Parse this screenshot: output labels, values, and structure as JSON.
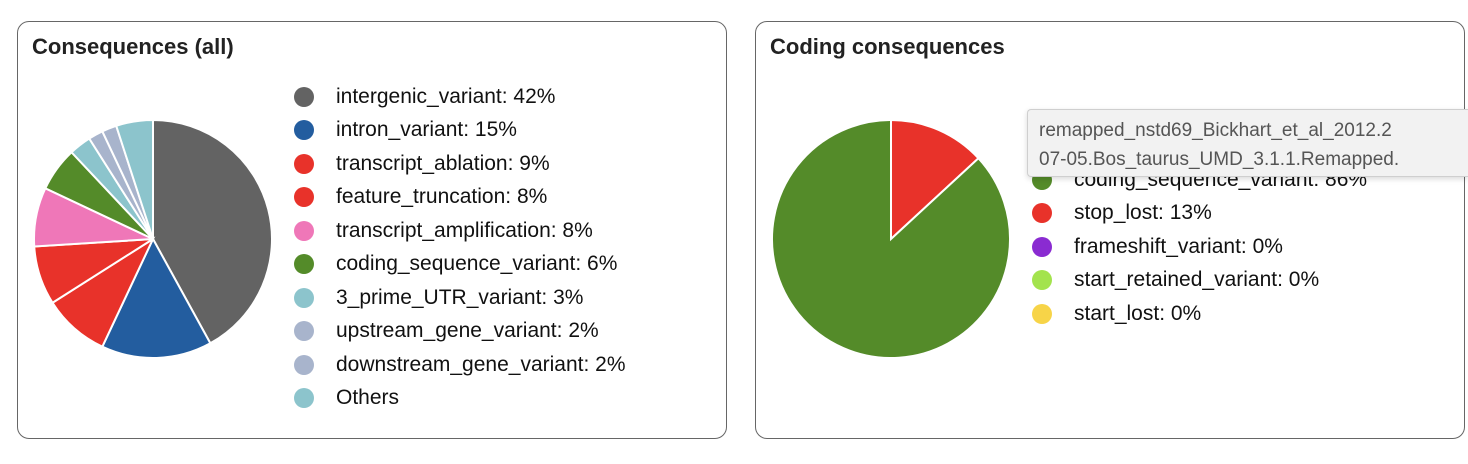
{
  "chart_data": [
    {
      "type": "pie",
      "title": "Consequences (all)",
      "slices": [
        {
          "label": "intergenic_variant: 42%",
          "value": 42,
          "color": "#636363"
        },
        {
          "label": "intron_variant: 15%",
          "value": 15,
          "color": "#235d9f"
        },
        {
          "label": "transcript_ablation: 9%",
          "value": 9,
          "color": "#e8322a"
        },
        {
          "label": "feature_truncation: 8%",
          "value": 8,
          "color": "#e8322a"
        },
        {
          "label": "transcript_amplification: 8%",
          "value": 8,
          "color": "#ef77b8"
        },
        {
          "label": "coding_sequence_variant: 6%",
          "value": 6,
          "color": "#548b29"
        },
        {
          "label": "3_prime_UTR_variant: 3%",
          "value": 3,
          "color": "#8cc4cc"
        },
        {
          "label": "upstream_gene_variant: 2%",
          "value": 2,
          "color": "#a8b4cc"
        },
        {
          "label": "downstream_gene_variant: 2%",
          "value": 2,
          "color": "#a8b4cc"
        },
        {
          "label": "Others",
          "value": 5,
          "color": "#8cc4cc"
        }
      ],
      "pie_slices": [
        {
          "value": 42,
          "color": "#636363"
        },
        {
          "value": 15,
          "color": "#235d9f"
        },
        {
          "value": 9,
          "color": "#e8322a"
        },
        {
          "value": 8,
          "color": "#e8322a"
        },
        {
          "value": 8,
          "color": "#ef77b8"
        },
        {
          "value": 6,
          "color": "#548b29"
        },
        {
          "value": 3,
          "color": "#8cc4cc"
        },
        {
          "value": 2,
          "color": "#a8b4cc"
        },
        {
          "value": 2,
          "color": "#a8b4cc"
        },
        {
          "value": 5,
          "color": "#8cc4cc"
        }
      ]
    },
    {
      "type": "pie",
      "title": "Coding consequences",
      "slices": [
        {
          "label": "coding_sequence_variant: 86%",
          "value": 86,
          "color": "#548b29"
        },
        {
          "label": "stop_lost: 13%",
          "value": 13,
          "color": "#e8322a"
        },
        {
          "label": "frameshift_variant: 0%",
          "value": 0,
          "color": "#8a2bd1"
        },
        {
          "label": "start_retained_variant: 0%",
          "value": 0,
          "color": "#a3e34d"
        },
        {
          "label": "start_lost: 0%",
          "value": 0,
          "color": "#f7d448"
        }
      ],
      "pie_slices": [
        {
          "value": 13,
          "color": "#e8322a"
        },
        {
          "value": 86,
          "color": "#548b29"
        }
      ]
    }
  ],
  "tooltip": {
    "line1": "remapped_nstd69_Bickhart_et_al_2012.2",
    "line2": "07-05.Bos_taurus_UMD_3.1.1.Remapped."
  }
}
